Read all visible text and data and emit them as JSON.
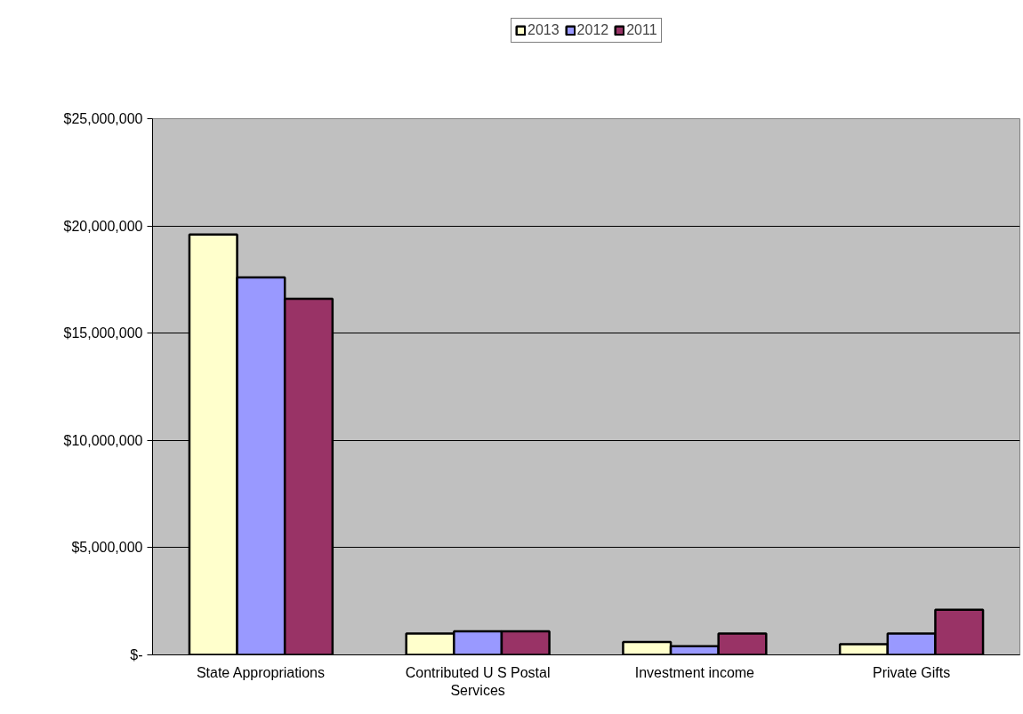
{
  "chart_data": {
    "type": "bar",
    "categories": [
      "State Appropriations",
      "Contributed U S Postal Services",
      "Investment income",
      "Private Gifts"
    ],
    "series": [
      {
        "name": "2013",
        "color": "#ffffcc",
        "values": [
          19600000,
          1000000,
          600000,
          500000
        ]
      },
      {
        "name": "2012",
        "color": "#9999ff",
        "values": [
          17600000,
          1100000,
          400000,
          1000000
        ]
      },
      {
        "name": "2011",
        "color": "#993366",
        "values": [
          16600000,
          1100000,
          1000000,
          2100000
        ]
      }
    ],
    "ylim": [
      0,
      25000000
    ],
    "yticks": [
      {
        "value": 0,
        "label": "$-"
      },
      {
        "value": 5000000,
        "label": "$5,000,000"
      },
      {
        "value": 10000000,
        "label": "$10,000,000"
      },
      {
        "value": 15000000,
        "label": "$15,000,000"
      },
      {
        "value": 20000000,
        "label": "$20,000,000"
      },
      {
        "value": 25000000,
        "label": "$25,000,000"
      }
    ],
    "grid": "y",
    "legend": "top"
  }
}
